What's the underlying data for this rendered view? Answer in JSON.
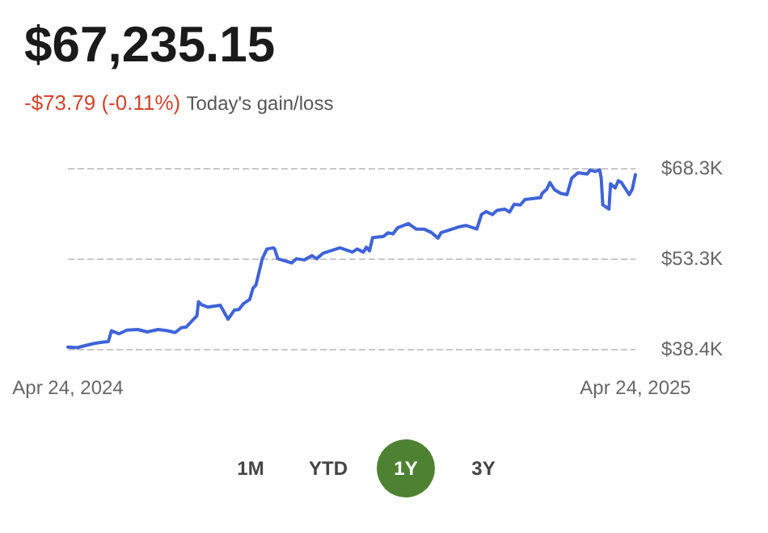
{
  "chart_data": {
    "type": "line",
    "title": "$67,235.15",
    "subtitle": "-$73.79 (-0.11%)",
    "annotations": [
      "Today's gain/loss",
      "1M",
      "YTD",
      "1Y",
      "3Y"
    ],
    "x": [
      "2024-04-24",
      "2024-04-30",
      "2024-05-06",
      "2024-05-11",
      "2024-05-16",
      "2024-05-20",
      "2024-05-22",
      "2024-05-27",
      "2024-06-01",
      "2024-06-08",
      "2024-06-14",
      "2024-06-21",
      "2024-06-27",
      "2024-07-02",
      "2024-07-06",
      "2024-07-09",
      "2024-07-16",
      "2024-07-17",
      "2024-07-19",
      "2024-07-23",
      "2024-07-31",
      "2024-08-05",
      "2024-08-09",
      "2024-08-12",
      "2024-08-15",
      "2024-08-19",
      "2024-08-21",
      "2024-08-23",
      "2024-08-27",
      "2024-08-30",
      "2024-09-03",
      "2024-09-04",
      "2024-09-06",
      "2024-09-15",
      "2024-09-18",
      "2024-09-23",
      "2024-09-28",
      "2024-10-01",
      "2024-10-05",
      "2024-10-16",
      "2024-10-24",
      "2024-10-27",
      "2024-10-31",
      "2024-11-02",
      "2024-11-04",
      "2024-11-06",
      "2024-11-13",
      "2024-11-16",
      "2024-11-19",
      "2024-11-22",
      "2024-11-29",
      "2024-12-04",
      "2024-12-09",
      "2024-12-14",
      "2024-12-18",
      "2024-12-20",
      "2025-01-01",
      "2025-01-05",
      "2025-01-12",
      "2025-01-15",
      "2025-01-18",
      "2025-01-22",
      "2025-01-25",
      "2025-01-30",
      "2025-02-02",
      "2025-02-05",
      "2025-02-09",
      "2025-02-12",
      "2025-02-22",
      "2025-02-23",
      "2025-02-26",
      "2025-02-28",
      "2025-03-03",
      "2025-03-07",
      "2025-03-11",
      "2025-03-14",
      "2025-03-18",
      "2025-03-24",
      "2025-03-26",
      "2025-03-29",
      "2025-04-01",
      "2025-04-02",
      "2025-04-03",
      "2025-04-07",
      "2025-04-08",
      "2025-04-11",
      "2025-04-13",
      "2025-04-15",
      "2025-04-20",
      "2025-04-22",
      "2025-04-24"
    ],
    "series": [
      {
        "color": "#3f63d8",
        "values": [
          38.7,
          38.6,
          39.0,
          39.3,
          39.5,
          39.6,
          41.4,
          40.9,
          41.5,
          41.6,
          41.2,
          41.6,
          41.4,
          41.1,
          41.9,
          42.0,
          43.9,
          46.2,
          45.7,
          45.3,
          45.6,
          43.3,
          44.8,
          44.9,
          45.9,
          46.6,
          48.4,
          49.0,
          53.3,
          54.9,
          55.1,
          54.9,
          53.3,
          52.6,
          53.3,
          53.1,
          53.8,
          53.3,
          54.2,
          55.1,
          54.4,
          54.9,
          54.4,
          55.2,
          54.6,
          56.8,
          57.0,
          57.6,
          57.4,
          58.4,
          59.1,
          58.2,
          58.2,
          57.6,
          56.7,
          57.6,
          58.6,
          58.8,
          58.2,
          60.6,
          61.1,
          60.6,
          61.3,
          61.5,
          61.0,
          62.3,
          62.2,
          63.1,
          63.4,
          64.1,
          64.8,
          65.9,
          64.7,
          64.1,
          63.9,
          66.6,
          67.5,
          67.3,
          68.0,
          67.7,
          68.0,
          66.6,
          62.2,
          61.5,
          65.7,
          65.0,
          66.2,
          65.9,
          63.9,
          64.8,
          67.2
        ]
      }
    ],
    "xlim": [
      "2024-04-24",
      "2025-04-24"
    ],
    "xticks": [
      {
        "value": "2024-04-24",
        "label": "Apr 24, 2024"
      },
      {
        "value": "2025-04-24",
        "label": "Apr 24, 2025"
      }
    ],
    "ylim": [
      38.4,
      68.3
    ],
    "yticks": [
      {
        "value": 38.4,
        "label": "$38.4K"
      },
      {
        "value": 53.3,
        "label": "$53.3K"
      },
      {
        "value": 68.3,
        "label": "$68.3K"
      }
    ],
    "grid": "y"
  }
}
